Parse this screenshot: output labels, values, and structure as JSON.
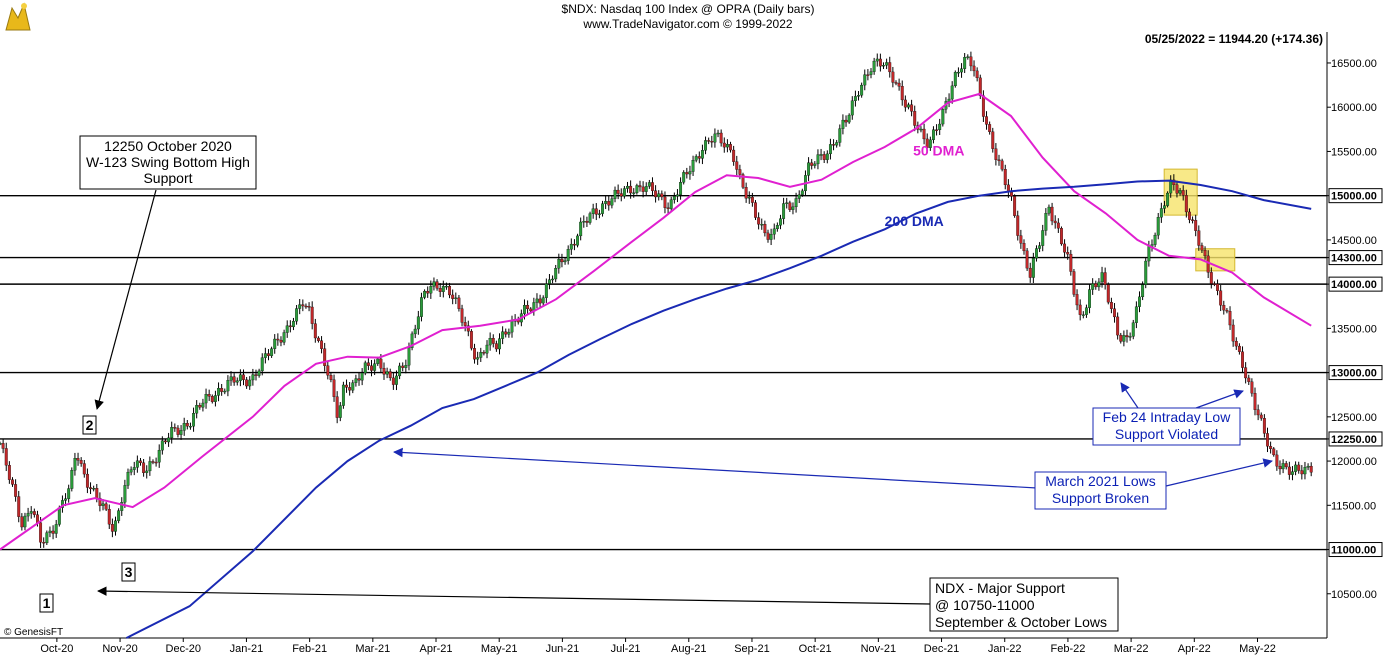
{
  "chart_data": {
    "type": "candlestick",
    "title": "$NDX: Nasdaq 100 Index @ OPRA (Daily bars)",
    "subtitle": "www.TradeNavigator.com © 1999-2022",
    "last_quote": "05/25/2022 = 11944.20 (+174.36)",
    "watermark": "© GenesisFT",
    "ylim": [
      10000,
      16850
    ],
    "y_ticks": [
      10500,
      11000,
      11500,
      12000,
      12250,
      12500,
      13000,
      13500,
      14000,
      14300,
      14500,
      15000,
      15500,
      16000,
      16500
    ],
    "y_tick_labels": [
      "10500.00",
      "11000.00",
      "11500.00",
      "12000.00",
      "12250.00",
      "12500.00",
      "13000.00",
      "13500.00",
      "14000.00",
      "14300.00",
      "14500.00",
      "15000.00",
      "15500.00",
      "16000.00",
      "16500.00"
    ],
    "y_highlight_labels": [
      "11000.00",
      "12250.00",
      "13000.00",
      "14000.00",
      "14300.00",
      "15000.00"
    ],
    "x_labels": [
      "Oct-20",
      "Nov-20",
      "Dec-20",
      "Jan-21",
      "Feb-21",
      "Mar-21",
      "Apr-21",
      "May-21",
      "Jun-21",
      "Jul-21",
      "Aug-21",
      "Sep-21",
      "Oct-21",
      "Nov-21",
      "Dec-21",
      "Jan-22",
      "Feb-22",
      "Mar-22",
      "Apr-22",
      "May-22"
    ],
    "x_label_index": [
      0.9,
      1.9,
      2.9,
      3.9,
      4.9,
      5.9,
      6.9,
      7.9,
      8.9,
      9.9,
      10.9,
      11.9,
      12.9,
      13.9,
      14.9,
      15.9,
      16.9,
      17.9,
      18.9,
      19.9
    ],
    "support_levels": [
      11000,
      12250,
      13000,
      14000,
      14300,
      15000
    ],
    "price_path": [
      [
        0.0,
        12200
      ],
      [
        0.15,
        11800
      ],
      [
        0.35,
        11300
      ],
      [
        0.5,
        11500
      ],
      [
        0.65,
        11050
      ],
      [
        0.8,
        11200
      ],
      [
        0.9,
        11350
      ],
      [
        1.0,
        11600
      ],
      [
        1.1,
        11650
      ],
      [
        1.2,
        12100
      ],
      [
        1.3,
        11900
      ],
      [
        1.45,
        11700
      ],
      [
        1.6,
        11500
      ],
      [
        1.8,
        11200
      ],
      [
        1.95,
        11700
      ],
      [
        2.1,
        11950
      ],
      [
        2.3,
        11900
      ],
      [
        2.5,
        12100
      ],
      [
        2.7,
        12300
      ],
      [
        3.0,
        12450
      ],
      [
        3.2,
        12650
      ],
      [
        3.45,
        12800
      ],
      [
        3.7,
        12900
      ],
      [
        4.0,
        12950
      ],
      [
        4.2,
        13150
      ],
      [
        4.4,
        13400
      ],
      [
        4.55,
        13500
      ],
      [
        4.7,
        13650
      ],
      [
        4.8,
        13800
      ],
      [
        4.9,
        13700
      ],
      [
        5.0,
        13450
      ],
      [
        5.1,
        13200
      ],
      [
        5.25,
        12800
      ],
      [
        5.35,
        12500
      ],
      [
        5.45,
        12900
      ],
      [
        5.6,
        12850
      ],
      [
        5.8,
        13050
      ],
      [
        6.0,
        13150
      ],
      [
        6.2,
        12850
      ],
      [
        6.4,
        13100
      ],
      [
        6.55,
        13500
      ],
      [
        6.7,
        13850
      ],
      [
        6.8,
        13950
      ],
      [
        6.95,
        14000
      ],
      [
        7.1,
        13950
      ],
      [
        7.25,
        13700
      ],
      [
        7.4,
        13450
      ],
      [
        7.55,
        13150
      ],
      [
        7.7,
        13300
      ],
      [
        7.85,
        13300
      ],
      [
        8.0,
        13500
      ],
      [
        8.2,
        13600
      ],
      [
        8.4,
        13750
      ],
      [
        8.6,
        13900
      ],
      [
        8.8,
        14150
      ],
      [
        9.0,
        14400
      ],
      [
        9.2,
        14650
      ],
      [
        9.4,
        14800
      ],
      [
        9.6,
        14950
      ],
      [
        9.8,
        15000
      ],
      [
        10.0,
        15100
      ],
      [
        10.2,
        15100
      ],
      [
        10.4,
        15000
      ],
      [
        10.6,
        14900
      ],
      [
        10.8,
        15150
      ],
      [
        10.95,
        15350
      ],
      [
        11.1,
        15550
      ],
      [
        11.3,
        15650
      ],
      [
        11.45,
        15600
      ],
      [
        11.6,
        15500
      ],
      [
        11.7,
        15200
      ],
      [
        11.8,
        15000
      ],
      [
        11.95,
        14800
      ],
      [
        12.1,
        14600
      ],
      [
        12.25,
        14550
      ],
      [
        12.4,
        14850
      ],
      [
        12.6,
        14950
      ],
      [
        12.8,
        15300
      ],
      [
        13.0,
        15450
      ],
      [
        13.2,
        15600
      ],
      [
        13.4,
        15850
      ],
      [
        13.6,
        16250
      ],
      [
        13.8,
        16450
      ],
      [
        14.0,
        16500
      ],
      [
        14.15,
        16350
      ],
      [
        14.3,
        16050
      ],
      [
        14.5,
        15800
      ],
      [
        14.7,
        15600
      ],
      [
        14.9,
        15850
      ],
      [
        15.1,
        16350
      ],
      [
        15.25,
        16550
      ],
      [
        15.4,
        16450
      ],
      [
        15.55,
        16000
      ],
      [
        15.7,
        15600
      ],
      [
        15.85,
        15250
      ],
      [
        16.0,
        14950
      ],
      [
        16.15,
        14500
      ],
      [
        16.3,
        14100
      ],
      [
        16.45,
        14450
      ],
      [
        16.6,
        14900
      ],
      [
        16.75,
        14600
      ],
      [
        16.9,
        14250
      ],
      [
        17.0,
        13900
      ],
      [
        17.1,
        13600
      ],
      [
        17.25,
        13950
      ],
      [
        17.45,
        14050
      ],
      [
        17.6,
        13700
      ],
      [
        17.7,
        13450
      ],
      [
        17.85,
        13350
      ],
      [
        18.0,
        13700
      ],
      [
        18.15,
        14350
      ],
      [
        18.3,
        14650
      ],
      [
        18.45,
        14950
      ],
      [
        18.55,
        15150
      ],
      [
        18.7,
        15050
      ],
      [
        18.85,
        14700
      ],
      [
        18.95,
        14500
      ],
      [
        19.1,
        14200
      ],
      [
        19.25,
        13950
      ],
      [
        19.4,
        13650
      ],
      [
        19.55,
        13300
      ],
      [
        19.7,
        13050
      ],
      [
        19.85,
        12650
      ],
      [
        20.0,
        12300
      ],
      [
        20.15,
        12050
      ],
      [
        20.3,
        11950
      ],
      [
        20.45,
        11850
      ],
      [
        20.6,
        11900
      ],
      [
        20.75,
        11950
      ]
    ],
    "series": [
      {
        "name": "50 DMA",
        "color": "#e020d0",
        "points": [
          [
            0.0,
            11000
          ],
          [
            1.0,
            11500
          ],
          [
            1.5,
            11580
          ],
          [
            2.1,
            11480
          ],
          [
            2.6,
            11700
          ],
          [
            3.2,
            12050
          ],
          [
            4.0,
            12500
          ],
          [
            4.5,
            12850
          ],
          [
            5.0,
            13100
          ],
          [
            5.5,
            13180
          ],
          [
            6.0,
            13170
          ],
          [
            6.5,
            13300
          ],
          [
            7.0,
            13480
          ],
          [
            7.6,
            13530
          ],
          [
            8.2,
            13600
          ],
          [
            8.8,
            13830
          ],
          [
            9.4,
            14150
          ],
          [
            10.0,
            14480
          ],
          [
            10.5,
            14750
          ],
          [
            11.0,
            15040
          ],
          [
            11.5,
            15230
          ],
          [
            12.0,
            15200
          ],
          [
            12.5,
            15100
          ],
          [
            13.0,
            15180
          ],
          [
            13.5,
            15380
          ],
          [
            14.0,
            15550
          ],
          [
            14.5,
            15760
          ],
          [
            15.0,
            16050
          ],
          [
            15.5,
            16150
          ],
          [
            16.0,
            15900
          ],
          [
            16.5,
            15430
          ],
          [
            17.0,
            15050
          ],
          [
            17.5,
            14800
          ],
          [
            18.0,
            14500
          ],
          [
            18.5,
            14320
          ],
          [
            19.0,
            14280
          ],
          [
            19.5,
            14130
          ],
          [
            20.0,
            13850
          ],
          [
            20.75,
            13530
          ]
        ]
      },
      {
        "name": "200 DMA",
        "color": "#1a2ab4",
        "points": [
          [
            2.0,
            10000
          ],
          [
            3.0,
            10360
          ],
          [
            4.0,
            10980
          ],
          [
            5.0,
            11700
          ],
          [
            5.5,
            12000
          ],
          [
            6.0,
            12230
          ],
          [
            6.5,
            12400
          ],
          [
            7.0,
            12600
          ],
          [
            7.5,
            12700
          ],
          [
            8.0,
            12850
          ],
          [
            8.5,
            13000
          ],
          [
            9.0,
            13200
          ],
          [
            9.5,
            13380
          ],
          [
            10.0,
            13550
          ],
          [
            10.5,
            13700
          ],
          [
            11.0,
            13830
          ],
          [
            11.5,
            13950
          ],
          [
            12.0,
            14050
          ],
          [
            12.5,
            14180
          ],
          [
            13.0,
            14320
          ],
          [
            13.5,
            14480
          ],
          [
            14.0,
            14620
          ],
          [
            14.5,
            14800
          ],
          [
            15.0,
            14930
          ],
          [
            15.5,
            15000
          ],
          [
            16.0,
            15050
          ],
          [
            16.5,
            15080
          ],
          [
            17.0,
            15100
          ],
          [
            17.5,
            15130
          ],
          [
            18.0,
            15160
          ],
          [
            18.5,
            15170
          ],
          [
            19.0,
            15120
          ],
          [
            19.5,
            15050
          ],
          [
            20.0,
            14950
          ],
          [
            20.75,
            14850
          ]
        ]
      }
    ],
    "ma_labels": [
      "50 DMA",
      "200 DMA"
    ],
    "annotations": [
      {
        "lines": [
          "12250 October 2020",
          "W-123 Swing Bottom High",
          "Support"
        ]
      },
      {
        "lines": [
          "NDX - Major Support",
          "@ 10750-11000",
          "September & October Lows"
        ]
      },
      {
        "lines": [
          "Feb 24 Intraday Low",
          "Support Violated"
        ]
      },
      {
        "lines": [
          "March 2021 Lows",
          "Support Broken"
        ]
      }
    ],
    "swing_points": [
      "1",
      "2",
      "3"
    ],
    "grid": false,
    "legend": "none"
  }
}
